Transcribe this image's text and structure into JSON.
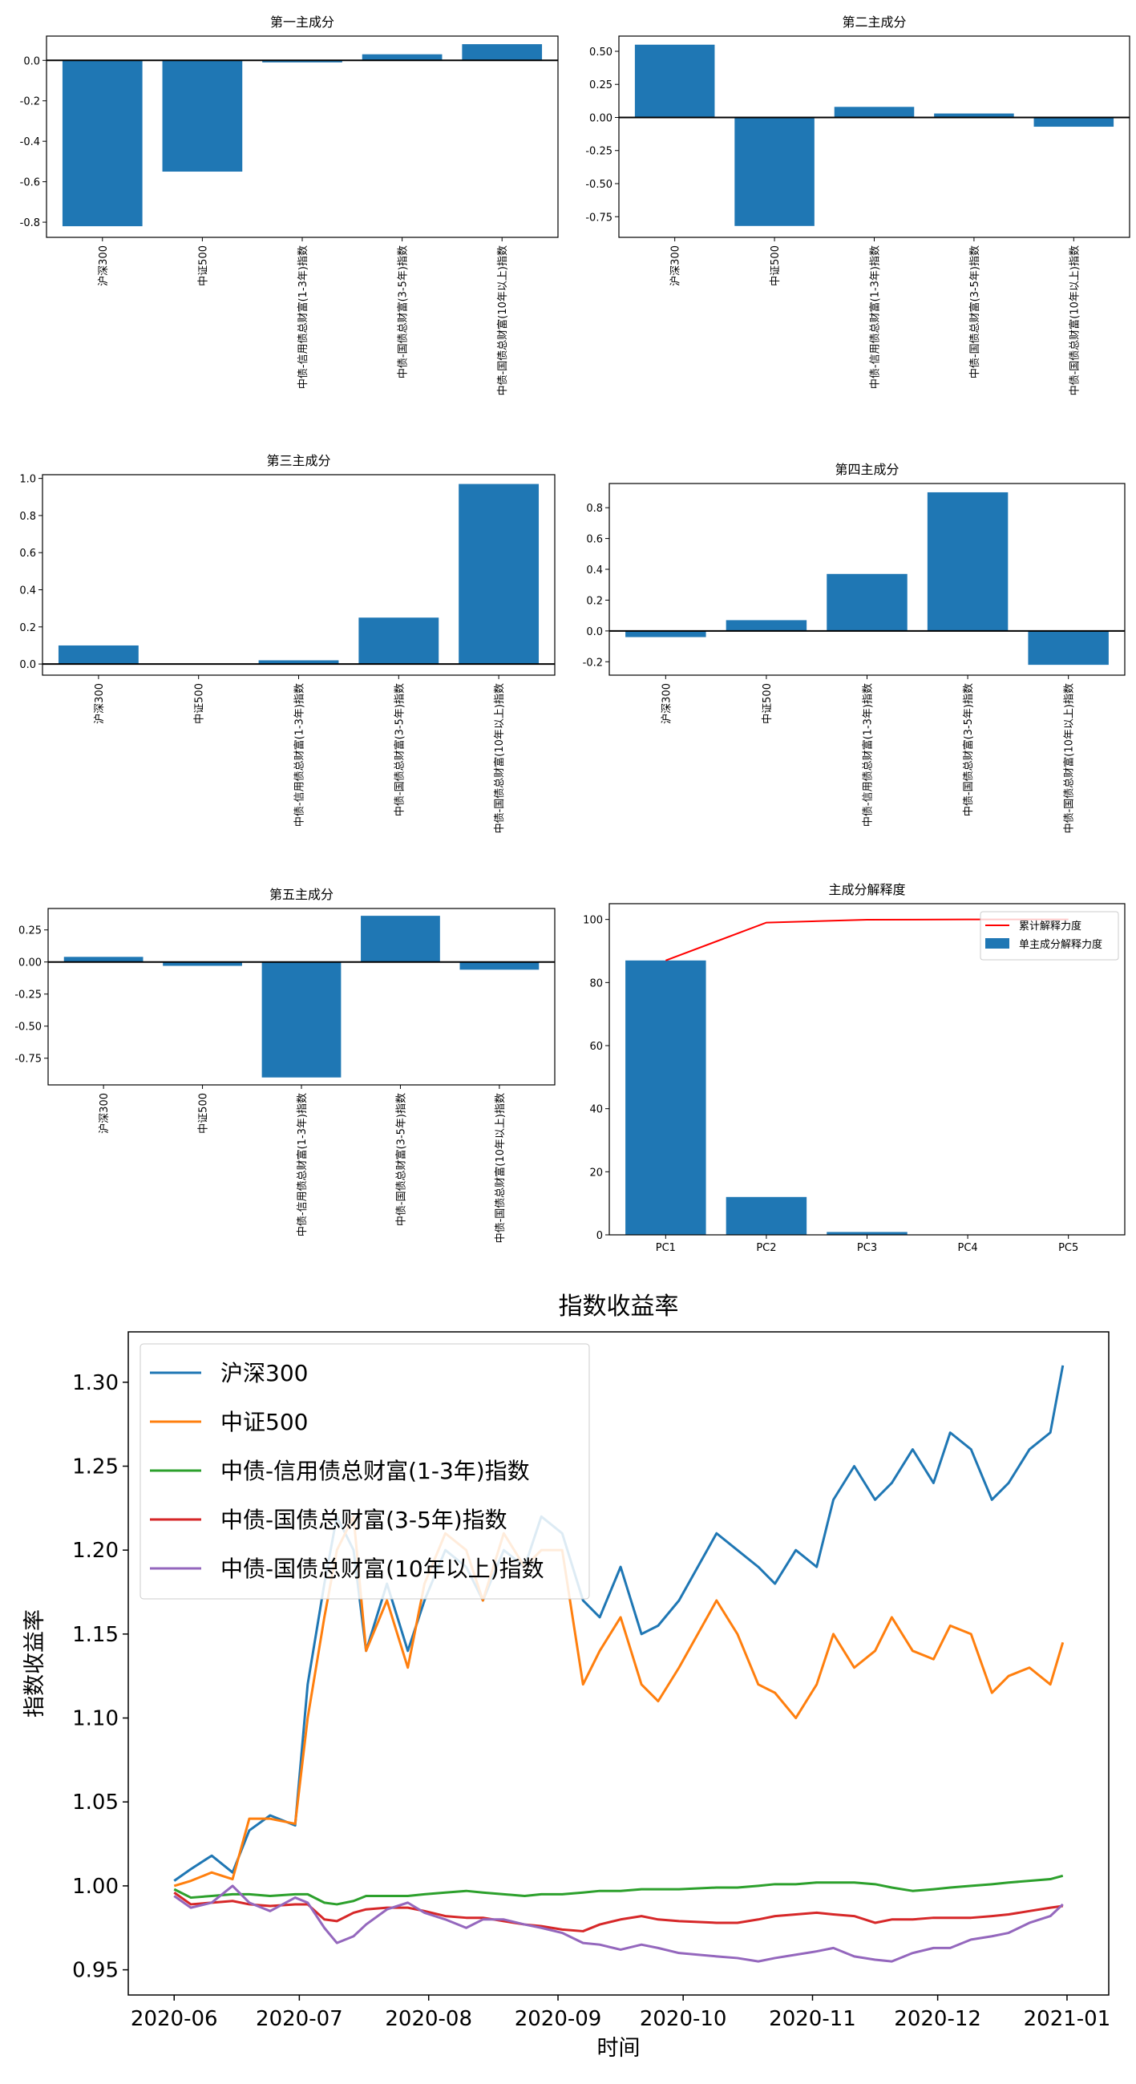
{
  "colors": {
    "bar": "#1f77b4",
    "cumulative_line": "#ff0000",
    "zero_line": "#000000"
  },
  "chart_data": [
    {
      "type": "bar",
      "title": "第一主成分",
      "categories": [
        "沪深300",
        "中证500",
        "中债-信用债总财富(1-3年)指数",
        "中债-国债总财富(3-5年)指数",
        "中债-国债总财富(10年以上)指数"
      ],
      "values": [
        -0.82,
        -0.55,
        -0.01,
        0.03,
        0.08
      ],
      "ylim": [
        -0.875,
        0.12
      ],
      "yticks": [
        0.0,
        -0.2,
        -0.4,
        -0.6,
        -0.8
      ],
      "ytick_labels": [
        "0.0",
        "-0.2",
        "-0.4",
        "-0.6",
        "-0.8"
      ],
      "zero_line": true
    },
    {
      "type": "bar",
      "title": "第二主成分",
      "categories": [
        "沪深300",
        "中证500",
        "中债-信用债总财富(1-3年)指数",
        "中债-国债总财富(3-5年)指数",
        "中债-国债总财富(10年以上)指数"
      ],
      "values": [
        0.55,
        -0.82,
        0.08,
        0.03,
        -0.07
      ],
      "ylim": [
        -0.906,
        0.615
      ],
      "yticks": [
        0.5,
        0.25,
        0.0,
        -0.25,
        -0.5,
        -0.75
      ],
      "ytick_labels": [
        "0.50",
        "0.25",
        "0.00",
        "-0.25",
        "-0.50",
        "-0.75"
      ],
      "zero_line": true
    },
    {
      "type": "bar",
      "title": "第三主成分",
      "categories": [
        "沪深300",
        "中证500",
        "中债-信用债总财富(1-3年)指数",
        "中债-国债总财富(3-5年)指数",
        "中债-国债总财富(10年以上)指数"
      ],
      "values": [
        0.1,
        0.0,
        0.02,
        0.25,
        0.97
      ],
      "ylim": [
        -0.06,
        1.02
      ],
      "yticks": [
        0.0,
        0.2,
        0.4,
        0.6,
        0.8,
        1.0
      ],
      "ytick_labels": [
        "0.0",
        "0.2",
        "0.4",
        "0.6",
        "0.8",
        "1.0"
      ],
      "zero_line": true
    },
    {
      "type": "bar",
      "title": "第四主成分",
      "categories": [
        "沪深300",
        "中证500",
        "中债-信用债总财富(1-3年)指数",
        "中债-国债总财富(3-5年)指数",
        "中债-国债总财富(10年以上)指数"
      ],
      "values": [
        -0.04,
        0.07,
        0.37,
        0.9,
        -0.22
      ],
      "ylim": [
        -0.287,
        0.957
      ],
      "yticks": [
        -0.2,
        0.0,
        0.2,
        0.4,
        0.6,
        0.8
      ],
      "ytick_labels": [
        "-0.2",
        "0.0",
        "0.2",
        "0.4",
        "0.6",
        "0.8"
      ],
      "zero_line": true
    },
    {
      "type": "bar",
      "title": "第五主成分",
      "categories": [
        "沪深300",
        "中证500",
        "中债-信用债总财富(1-3年)指数",
        "中债-国债总财富(3-5年)指数",
        "中债-国债总财富(10年以上)指数"
      ],
      "values": [
        0.04,
        -0.03,
        -0.9,
        0.36,
        -0.06
      ],
      "ylim": [
        -0.958,
        0.417
      ],
      "yticks": [
        0.25,
        0.0,
        -0.25,
        -0.5,
        -0.75
      ],
      "ytick_labels": [
        "0.25",
        "0.00",
        "-0.25",
        "-0.50",
        "-0.75"
      ],
      "zero_line": true
    },
    {
      "type": "bar",
      "title": "主成分解释度",
      "categories": [
        "PC1",
        "PC2",
        "PC3",
        "PC4",
        "PC5"
      ],
      "series": [
        {
          "name": "单主成分解释力度",
          "type": "bar",
          "values": [
            87.0,
            12.0,
            0.9,
            0.1,
            0.02
          ]
        },
        {
          "name": "累计解释力度",
          "type": "line",
          "values": [
            87.0,
            99.0,
            99.9,
            100.0,
            100.0
          ]
        }
      ],
      "ylim": [
        0,
        105
      ],
      "yticks": [
        0,
        20,
        40,
        60,
        80,
        100
      ],
      "ytick_labels": [
        "0",
        "20",
        "40",
        "60",
        "80",
        "100"
      ],
      "legend": "top-right"
    },
    {
      "type": "line",
      "title": "指数收益率",
      "xlabel": "时间",
      "ylabel": "指数收益率",
      "x": [
        "2020-06-01",
        "2020-06-05",
        "2020-06-10",
        "2020-06-15",
        "2020-06-19",
        "2020-06-24",
        "2020-06-30",
        "2020-07-03",
        "2020-07-07",
        "2020-07-10",
        "2020-07-14",
        "2020-07-17",
        "2020-07-22",
        "2020-07-27",
        "2020-07-31",
        "2020-08-05",
        "2020-08-10",
        "2020-08-14",
        "2020-08-19",
        "2020-08-24",
        "2020-08-28",
        "2020-09-02",
        "2020-09-07",
        "2020-09-11",
        "2020-09-16",
        "2020-09-21",
        "2020-09-25",
        "2020-09-30",
        "2020-10-09",
        "2020-10-14",
        "2020-10-19",
        "2020-10-23",
        "2020-10-28",
        "2020-11-02",
        "2020-11-06",
        "2020-11-11",
        "2020-11-16",
        "2020-11-20",
        "2020-11-25",
        "2020-11-30",
        "2020-12-04",
        "2020-12-09",
        "2020-12-14",
        "2020-12-18",
        "2020-12-23",
        "2020-12-28",
        "2020-12-31"
      ],
      "series": [
        {
          "name": "沪深300",
          "color": "#1f77b4",
          "values": [
            1.003,
            1.01,
            1.018,
            1.008,
            1.033,
            1.042,
            1.036,
            1.12,
            1.18,
            1.22,
            1.2,
            1.14,
            1.18,
            1.14,
            1.17,
            1.2,
            1.19,
            1.17,
            1.2,
            1.19,
            1.22,
            1.21,
            1.17,
            1.16,
            1.19,
            1.15,
            1.155,
            1.17,
            1.21,
            1.2,
            1.19,
            1.18,
            1.2,
            1.19,
            1.23,
            1.25,
            1.23,
            1.24,
            1.26,
            1.24,
            1.27,
            1.26,
            1.23,
            1.24,
            1.26,
            1.27,
            1.31
          ]
        },
        {
          "name": "中证500",
          "color": "#ff7f0e",
          "values": [
            1.0,
            1.003,
            1.008,
            1.004,
            1.04,
            1.04,
            1.037,
            1.1,
            1.16,
            1.2,
            1.22,
            1.14,
            1.17,
            1.13,
            1.18,
            1.21,
            1.2,
            1.17,
            1.21,
            1.19,
            1.2,
            1.2,
            1.12,
            1.14,
            1.16,
            1.12,
            1.11,
            1.13,
            1.17,
            1.15,
            1.12,
            1.115,
            1.1,
            1.12,
            1.15,
            1.13,
            1.14,
            1.16,
            1.14,
            1.135,
            1.155,
            1.15,
            1.115,
            1.125,
            1.13,
            1.12,
            1.145
          ]
        },
        {
          "name": "中债-信用债总财富(1-3年)指数",
          "color": "#2ca02c",
          "values": [
            0.998,
            0.993,
            0.994,
            0.995,
            0.995,
            0.994,
            0.995,
            0.995,
            0.99,
            0.989,
            0.991,
            0.994,
            0.994,
            0.994,
            0.995,
            0.996,
            0.997,
            0.996,
            0.995,
            0.994,
            0.995,
            0.995,
            0.996,
            0.997,
            0.997,
            0.998,
            0.998,
            0.998,
            0.999,
            0.999,
            1.0,
            1.001,
            1.001,
            1.002,
            1.002,
            1.002,
            1.001,
            0.999,
            0.997,
            0.998,
            0.999,
            1.0,
            1.001,
            1.002,
            1.003,
            1.004,
            1.006
          ]
        },
        {
          "name": "中债-国债总财富(3-5年)指数",
          "color": "#d62728",
          "values": [
            0.996,
            0.989,
            0.99,
            0.991,
            0.989,
            0.988,
            0.989,
            0.989,
            0.98,
            0.979,
            0.984,
            0.986,
            0.987,
            0.987,
            0.985,
            0.982,
            0.981,
            0.981,
            0.979,
            0.977,
            0.976,
            0.974,
            0.973,
            0.977,
            0.98,
            0.982,
            0.98,
            0.979,
            0.978,
            0.978,
            0.98,
            0.982,
            0.983,
            0.984,
            0.983,
            0.982,
            0.978,
            0.98,
            0.98,
            0.981,
            0.981,
            0.981,
            0.982,
            0.983,
            0.985,
            0.987,
            0.988
          ]
        },
        {
          "name": "中债-国债总财富(10年以上)指数",
          "color": "#9467bd",
          "values": [
            0.994,
            0.987,
            0.99,
            1.0,
            0.99,
            0.985,
            0.993,
            0.99,
            0.975,
            0.966,
            0.97,
            0.977,
            0.986,
            0.99,
            0.984,
            0.98,
            0.975,
            0.98,
            0.98,
            0.977,
            0.975,
            0.972,
            0.966,
            0.965,
            0.962,
            0.965,
            0.963,
            0.96,
            0.958,
            0.957,
            0.955,
            0.957,
            0.959,
            0.961,
            0.963,
            0.958,
            0.956,
            0.955,
            0.96,
            0.963,
            0.963,
            0.968,
            0.97,
            0.972,
            0.978,
            0.982,
            0.989
          ]
        }
      ],
      "xlim": [
        "2020-05-21",
        "2021-01-11"
      ],
      "ylim": [
        0.935,
        1.33
      ],
      "xticks": [
        "2020-06-01",
        "2020-07-01",
        "2020-08-01",
        "2020-09-01",
        "2020-10-01",
        "2020-11-01",
        "2020-12-01",
        "2021-01-01"
      ],
      "xtick_labels": [
        "2020-06",
        "2020-07",
        "2020-08",
        "2020-09",
        "2020-10",
        "2020-11",
        "2020-12",
        "2021-01"
      ],
      "yticks": [
        0.95,
        1.0,
        1.05,
        1.1,
        1.15,
        1.2,
        1.25,
        1.3
      ],
      "ytick_labels": [
        "0.95",
        "1.00",
        "1.05",
        "1.10",
        "1.15",
        "1.20",
        "1.25",
        "1.30"
      ],
      "legend": "upper-left",
      "grid": false
    }
  ]
}
